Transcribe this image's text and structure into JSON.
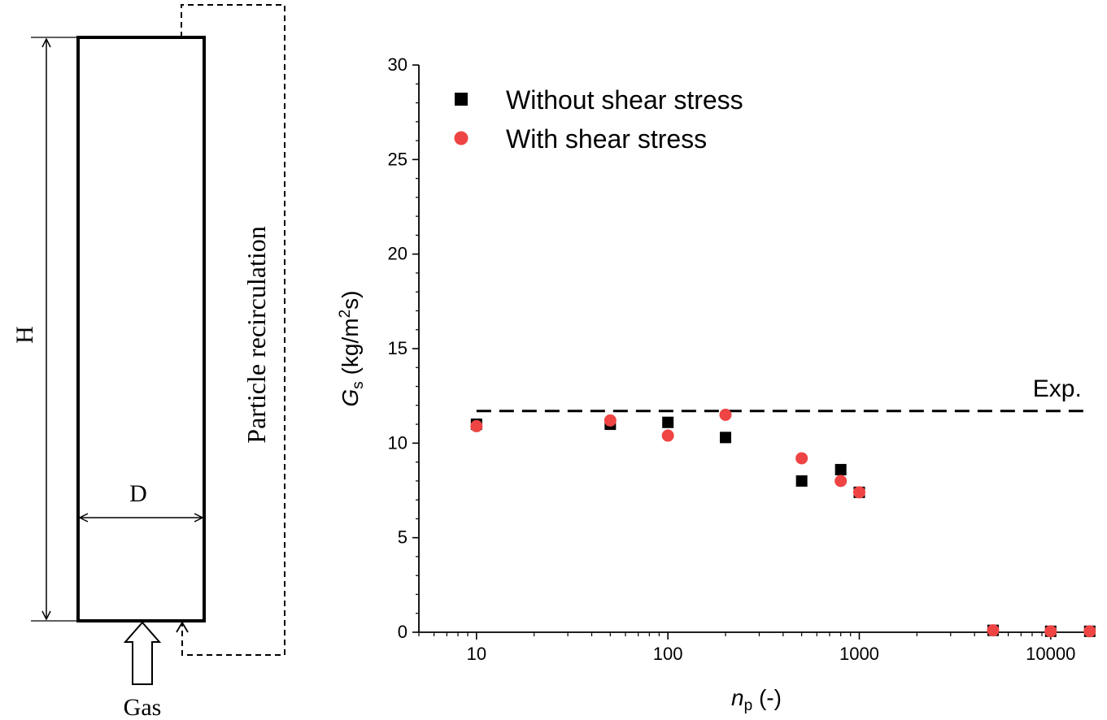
{
  "schematic": {
    "height_label": "H",
    "diameter_label": "D",
    "gas_label": "Gas",
    "recirculation_label": "Particle recirculation"
  },
  "chart_data": {
    "type": "scatter",
    "xscale": "log",
    "xlim": [
      5,
      17000
    ],
    "ylim": [
      0,
      30
    ],
    "x_ticks": [
      10,
      100,
      1000,
      10000
    ],
    "x_tick_labels": [
      "10",
      "100",
      "1000",
      "10000"
    ],
    "y_ticks": [
      0,
      5,
      10,
      15,
      20,
      25,
      30
    ],
    "y_tick_labels": [
      "0",
      "5",
      "10",
      "15",
      "20",
      "25",
      "30"
    ],
    "xlabel": {
      "symbol": "n",
      "subscript": "p",
      "unit": " (-)"
    },
    "ylabel": {
      "symbol": "G",
      "subscript": "s",
      "unit_before": " (kg/m",
      "superscript": "2",
      "unit_after": "s)"
    },
    "legend_position": "top-left",
    "series": [
      {
        "name": "Without shear stress",
        "marker": "square",
        "color": "#000000",
        "points": [
          {
            "x": 10,
            "y": 11.0
          },
          {
            "x": 50,
            "y": 11.0
          },
          {
            "x": 100,
            "y": 11.1
          },
          {
            "x": 200,
            "y": 10.3
          },
          {
            "x": 500,
            "y": 8.0
          },
          {
            "x": 800,
            "y": 8.6
          },
          {
            "x": 1000,
            "y": 7.4
          },
          {
            "x": 5000,
            "y": 0.1
          },
          {
            "x": 10000,
            "y": 0.05
          },
          {
            "x": 16000,
            "y": 0.05
          }
        ]
      },
      {
        "name": "With shear stress",
        "marker": "circle",
        "color": "#ee4444",
        "points": [
          {
            "x": 10,
            "y": 10.9
          },
          {
            "x": 50,
            "y": 11.2
          },
          {
            "x": 100,
            "y": 10.4
          },
          {
            "x": 200,
            "y": 11.5
          },
          {
            "x": 500,
            "y": 9.2
          },
          {
            "x": 800,
            "y": 8.0
          },
          {
            "x": 1000,
            "y": 7.4
          },
          {
            "x": 5000,
            "y": 0.1
          },
          {
            "x": 10000,
            "y": 0.05
          },
          {
            "x": 16000,
            "y": 0.05
          }
        ]
      }
    ],
    "reference_line": {
      "label": "Exp.",
      "y": 11.7,
      "x_from": 10,
      "x_to": 16000,
      "style": "dashed"
    }
  }
}
